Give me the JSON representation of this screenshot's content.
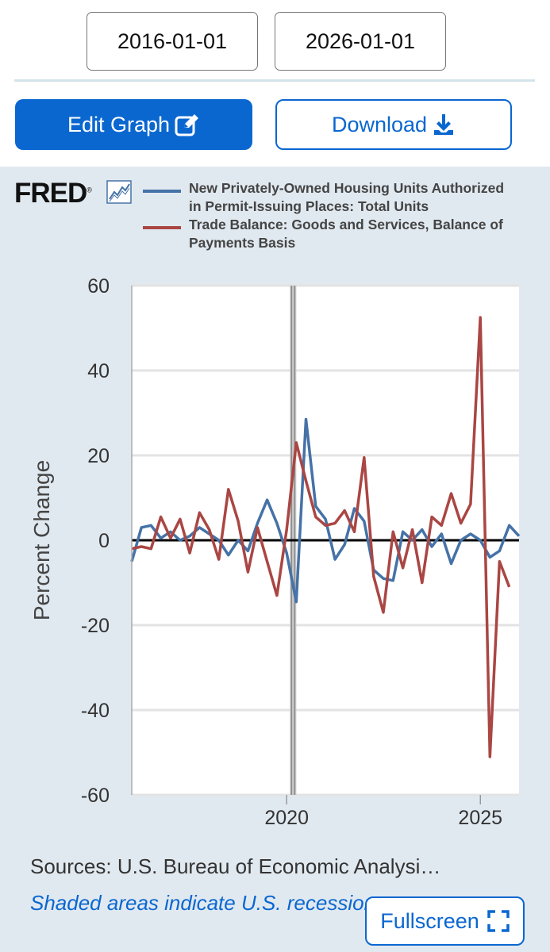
{
  "date_range": {
    "start": "2016-01-01",
    "end": "2026-01-01"
  },
  "buttons": {
    "edit_label": "Edit Graph",
    "download_label": "Download",
    "fullscreen_label": "Fullscreen"
  },
  "icons": {
    "edit": "edit-pencil-icon",
    "download": "download-icon",
    "fullscreen": "fullscreen-icon",
    "logo_chart": "line-chart-icon"
  },
  "brand": {
    "logo_text": "FRED",
    "reg_mark": "®"
  },
  "legend": [
    {
      "label": "New Privately-Owned Housing Units Authorized in Permit-Issuing Places: Total Units",
      "color": "#4572a7"
    },
    {
      "label": "Trade Balance: Goods and Services, Balance of Payments Basis",
      "color": "#aa4643"
    }
  ],
  "chart_data": {
    "type": "line",
    "ylabel": "Percent Change",
    "ylim": [
      -60,
      60
    ],
    "yticks": [
      60,
      40,
      20,
      0,
      -20,
      -40,
      -60
    ],
    "xlim": [
      "2016-01-01",
      "2026-01-01"
    ],
    "xticks": [
      {
        "label": "2020",
        "x": "2020-01-01"
      },
      {
        "label": "2025",
        "x": "2025-01-01"
      }
    ],
    "zero_line": true,
    "grid": "horizontal",
    "series": [
      {
        "name": "New Privately-Owned Housing Units Authorized in Permit-Issuing Places: Total Units",
        "color": "#4572a7",
        "x": [
          "2016-01-01",
          "2016-04-01",
          "2016-07-01",
          "2016-10-01",
          "2017-01-01",
          "2017-04-01",
          "2017-07-01",
          "2017-10-01",
          "2018-01-01",
          "2018-04-01",
          "2018-07-01",
          "2018-10-01",
          "2019-01-01",
          "2019-04-01",
          "2019-07-01",
          "2019-10-01",
          "2020-01-01",
          "2020-04-01",
          "2020-07-01",
          "2020-10-01",
          "2021-01-01",
          "2021-04-01",
          "2021-07-01",
          "2021-10-01",
          "2022-01-01",
          "2022-04-01",
          "2022-07-01",
          "2022-10-01",
          "2023-01-01",
          "2023-04-01",
          "2023-07-01",
          "2023-10-01",
          "2024-01-01",
          "2024-04-01",
          "2024-07-01",
          "2024-10-01",
          "2025-01-01",
          "2025-04-01",
          "2025-07-01",
          "2025-10-01",
          "2026-01-01"
        ],
        "values": [
          -5,
          3,
          3.5,
          0.5,
          2,
          0,
          1,
          3,
          1.5,
          0,
          -3.5,
          0,
          -2.5,
          4,
          9.5,
          4,
          -3,
          -14.5,
          28.5,
          8,
          5,
          -4.5,
          -1,
          7.5,
          4.5,
          -7,
          -9,
          -9.5,
          2,
          0,
          2.5,
          -1.5,
          1.5,
          -5.5,
          0,
          1.5,
          0,
          -4,
          -2.5,
          3.5,
          1
        ]
      },
      {
        "name": "Trade Balance: Goods and Services, Balance of Payments Basis",
        "color": "#aa4643",
        "x": [
          "2016-01-01",
          "2016-04-01",
          "2016-07-01",
          "2016-10-01",
          "2017-01-01",
          "2017-04-01",
          "2017-07-01",
          "2017-10-01",
          "2018-01-01",
          "2018-04-01",
          "2018-07-01",
          "2018-10-01",
          "2019-01-01",
          "2019-04-01",
          "2019-07-01",
          "2019-10-01",
          "2020-01-01",
          "2020-04-01",
          "2020-07-01",
          "2020-10-01",
          "2021-01-01",
          "2021-04-01",
          "2021-07-01",
          "2021-10-01",
          "2022-01-01",
          "2022-04-01",
          "2022-07-01",
          "2022-10-01",
          "2023-01-01",
          "2023-04-01",
          "2023-07-01",
          "2023-10-01",
          "2024-01-01",
          "2024-04-01",
          "2024-07-01",
          "2024-10-01",
          "2025-01-01",
          "2025-04-01",
          "2025-07-01",
          "2025-10-01"
        ],
        "values": [
          -2,
          -1.5,
          -2,
          5.5,
          0.5,
          5,
          -3,
          6.5,
          2.5,
          -4.5,
          12,
          4.5,
          -7.5,
          3,
          -5,
          -13,
          2.5,
          23,
          14,
          5.5,
          3.5,
          4,
          7,
          2,
          19.5,
          -8.5,
          -17,
          2,
          -6.5,
          2.5,
          -10,
          5.5,
          3.5,
          11,
          4,
          8.5,
          52.5,
          -51,
          -5,
          -11
        ]
      }
    ]
  },
  "footer": {
    "sources": "Sources: U.S. Bureau of Economic Analysi…",
    "shaded_note": "Shaded areas indicate U.S. recessions."
  }
}
